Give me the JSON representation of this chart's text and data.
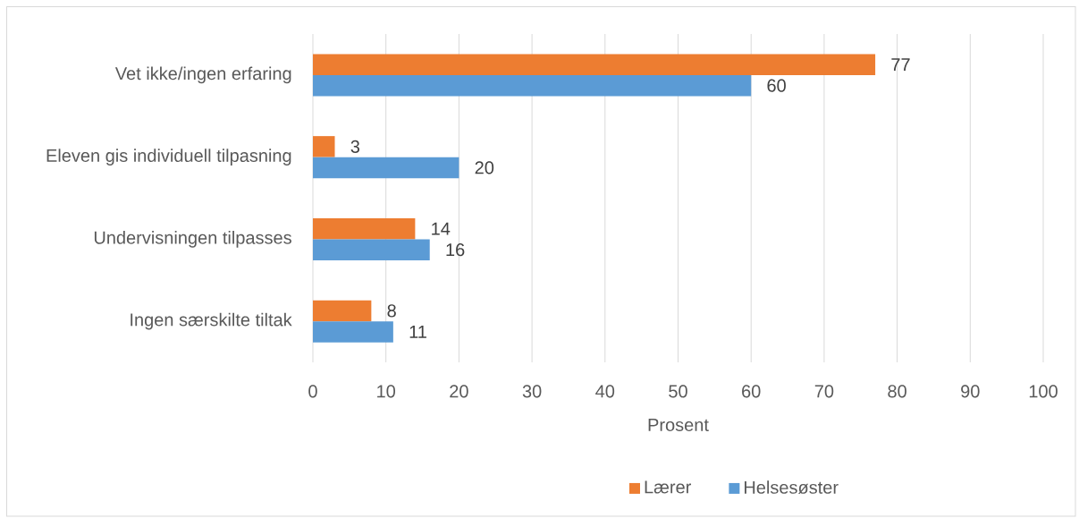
{
  "chart_data": {
    "type": "bar",
    "orientation": "horizontal",
    "categories": [
      "Vet ikke/ingen erfaring",
      "Eleven gis individuell tilpasning",
      "Undervisningen tilpasses",
      "Ingen særskilte tiltak"
    ],
    "series": [
      {
        "name": "Lærer",
        "color": "#ed7d31",
        "values": [
          77,
          3,
          14,
          8
        ]
      },
      {
        "name": "Helsesøster",
        "color": "#5b9bd5",
        "values": [
          60,
          20,
          16,
          11
        ]
      }
    ],
    "xlabel": "Prosent",
    "xlim": [
      0,
      100
    ],
    "xticks": [
      0,
      10,
      20,
      30,
      40,
      50,
      60,
      70,
      80,
      90,
      100
    ],
    "grid": "x",
    "legend": "bottom",
    "data_labels": true
  }
}
